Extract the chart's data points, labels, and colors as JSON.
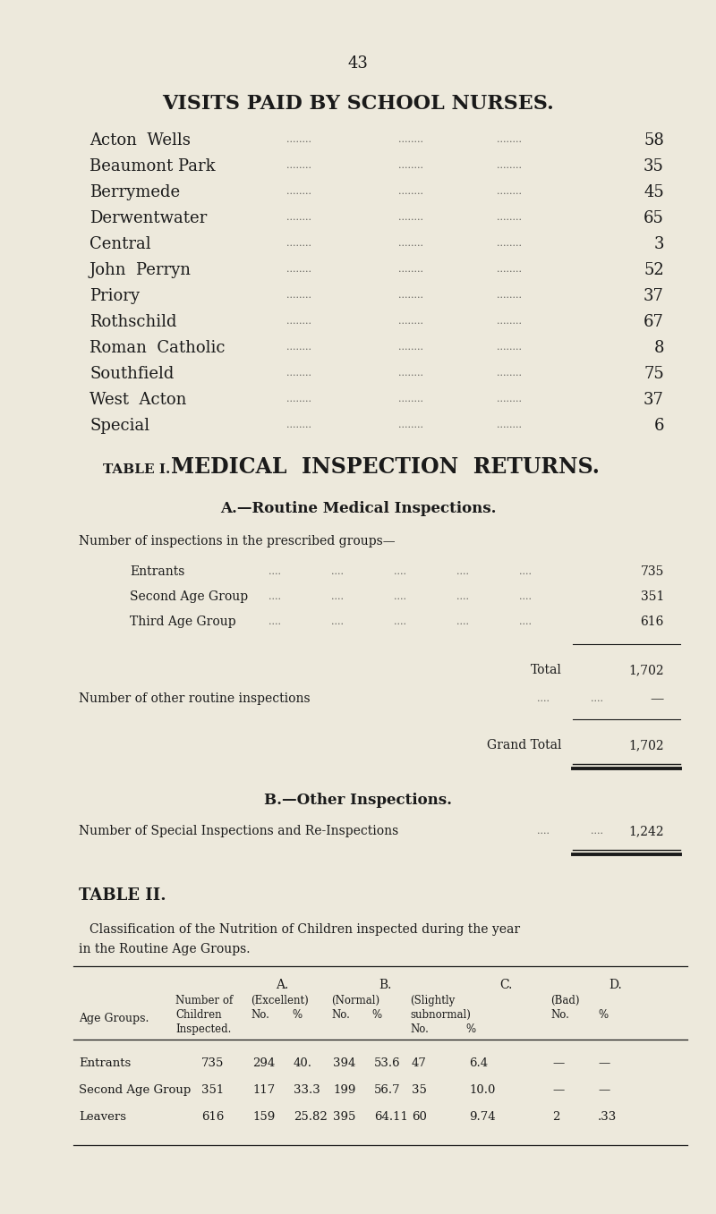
{
  "page_number": "43",
  "bg_color": "#ede9dc",
  "text_color": "#1a1a1a",
  "section1_title": "VISITS PAID BY SCHOOL NURSES.",
  "visits": [
    [
      "Acton  Wells",
      "58"
    ],
    [
      "Beaumont Park",
      "35"
    ],
    [
      "Berrymede",
      "45"
    ],
    [
      "Derwentwater",
      "65"
    ],
    [
      "Central",
      "3"
    ],
    [
      "John  Perryn",
      "52"
    ],
    [
      "Priory",
      "37"
    ],
    [
      "Rothschild",
      "67"
    ],
    [
      "Roman  Catholic",
      "8"
    ],
    [
      "Southfield",
      "75"
    ],
    [
      "West  Acton",
      "37"
    ],
    [
      "Special",
      "6"
    ]
  ],
  "section2_title": "MEDICAL  INSPECTION  RETURNS.",
  "table1_label": "TABLE I.",
  "table1_subtitle": "A.—Routine Medical Inspections.",
  "table1_intro": "Number of inspections in the prescribed groups—",
  "table1_rows": [
    [
      "Entrants",
      "735"
    ],
    [
      "Second Age Group",
      "351"
    ],
    [
      "Third Age Group",
      "616"
    ]
  ],
  "table1_total_label": "Total",
  "table1_total": "1,702",
  "table1_other_label": "Number of other routine inspections",
  "table1_other_value": "—",
  "table1_grand_label": "Grand Total",
  "table1_grand": "1,702",
  "table1b_subtitle": "B.—Other Inspections.",
  "table1b_label": "Number of Special Inspections and Re-Inspections",
  "table1b_value": "1,242",
  "table2_label": "TABLE II.",
  "table2_desc1": "Classification of the Nutrition of Children inspected during the year",
  "table2_desc2": "in the Routine Age Groups.",
  "table2_data": [
    [
      "Entrants",
      "735",
      "294",
      "40.",
      "394",
      "53.6",
      "47",
      "6.4",
      "—",
      "—"
    ],
    [
      "Second Age Group",
      "351",
      "117",
      "33.3",
      "199",
      "56.7",
      "35",
      "10.0",
      "—",
      "—"
    ],
    [
      "Leavers",
      "616",
      "159",
      "25.82",
      "395",
      "64.11",
      "60",
      "9.74",
      "2",
      ".33"
    ]
  ]
}
